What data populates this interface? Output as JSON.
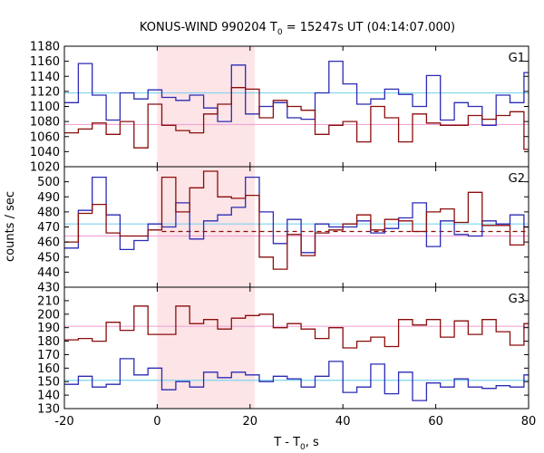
{
  "chart_data": {
    "type": "line",
    "title": "KONUS-WIND 990204 T",
    "title_sub": "0",
    "title_rest": " = 15247s UT (04:14:07.000)",
    "xlabel": "T - T",
    "xlabel_sub": "0",
    "xlabel_rest": ", s",
    "ylabel": "counts / sec",
    "xlim": [
      -20,
      80
    ],
    "xticks": [
      "-20",
      "0",
      "20",
      "40",
      "60",
      "80"
    ],
    "xtick_values": [
      -20,
      0,
      20,
      40,
      60,
      80
    ],
    "shaded_interval": [
      0,
      21
    ],
    "bin_edges": [
      -20,
      -17,
      -14,
      -11,
      -8,
      -5,
      -2,
      1,
      4,
      7,
      10,
      13,
      16,
      19,
      22,
      25,
      28,
      31,
      34,
      37,
      40,
      43,
      46,
      49,
      52,
      55,
      58,
      61,
      64,
      67,
      70,
      73,
      76,
      79,
      82
    ],
    "colors": {
      "blue": "#2b2bb5",
      "red": "#8b0d0d",
      "cyan_ref": "#7fd4f0",
      "pink_ref": "#f0a6d8",
      "shade": "#fde4e6"
    },
    "panels": [
      {
        "label": "G1",
        "ylim": [
          1020,
          1180
        ],
        "yticks": [
          1020,
          1040,
          1060,
          1080,
          1100,
          1120,
          1140,
          1160,
          1180
        ],
        "series": [
          {
            "color": "blue",
            "values": [
              1105,
              1157,
              1115,
              1082,
              1118,
              1110,
              1122,
              1112,
              1108,
              1115,
              1098,
              1080,
              1155,
              1090,
              1100,
              1105,
              1085,
              1083,
              1118,
              1160,
              1130,
              1103,
              1110,
              1123,
              1116,
              1100,
              1141,
              1082,
              1105,
              1100,
              1075,
              1115,
              1105,
              1145,
              1082
            ]
          },
          {
            "color": "red",
            "values": [
              1065,
              1070,
              1078,
              1063,
              1080,
              1045,
              1103,
              1075,
              1068,
              1065,
              1090,
              1103,
              1125,
              1123,
              1085,
              1108,
              1100,
              1095,
              1063,
              1075,
              1080,
              1053,
              1100,
              1085,
              1053,
              1090,
              1078,
              1075,
              1075,
              1088,
              1083,
              1088,
              1093,
              1043,
              1083
            ]
          }
        ],
        "refs": [
          {
            "color": "cyan_ref",
            "y": 1118
          },
          {
            "color": "pink_ref",
            "y": 1076
          }
        ]
      },
      {
        "label": "G2",
        "ylim": [
          430,
          510
        ],
        "yticks": [
          430,
          440,
          450,
          460,
          470,
          480,
          490,
          500
        ],
        "series": [
          {
            "color": "blue",
            "values": [
              456,
              481,
              503,
              478,
              455,
              461,
              472,
              470,
              486,
              462,
              474,
              478,
              483,
              503,
              480,
              459,
              475,
              453,
              472,
              470,
              470,
              474,
              466,
              469,
              476,
              486,
              457,
              474,
              465,
              464,
              474,
              472,
              478,
              470,
              456
            ]
          },
          {
            "color": "red",
            "values": [
              460,
              479,
              485,
              466,
              464,
              464,
              468,
              503,
              480,
              496,
              507,
              490,
              489,
              491,
              450,
              442,
              465,
              451,
              466,
              468,
              472,
              478,
              468,
              475,
              474,
              467,
              480,
              482,
              473,
              493,
              471,
              471,
              458,
              470,
              478
            ]
          }
        ],
        "refs": [
          {
            "color": "cyan_ref",
            "y": 472
          },
          {
            "color": "pink_ref",
            "y": 464
          }
        ],
        "dashed": {
          "color": "red",
          "y": 467,
          "x_from": 1,
          "x_to": 80
        }
      },
      {
        "label": "G3",
        "ylim": [
          130,
          220
        ],
        "yticks": [
          130,
          140,
          150,
          160,
          170,
          180,
          190,
          200,
          210
        ],
        "series": [
          {
            "color": "blue",
            "values": [
              148,
              154,
              146,
              148,
              167,
              155,
              160,
              144,
              150,
              146,
              157,
              153,
              157,
              155,
              150,
              154,
              152,
              146,
              154,
              165,
              142,
              146,
              163,
              141,
              157,
              136,
              149,
              146,
              152,
              146,
              145,
              147,
              146,
              155,
              148
            ]
          },
          {
            "color": "red",
            "values": [
              181,
              182,
              180,
              194,
              188,
              206,
              185,
              185,
              206,
              193,
              196,
              189,
              197,
              199,
              200,
              190,
              193,
              189,
              182,
              190,
              175,
              180,
              183,
              176,
              196,
              192,
              196,
              183,
              195,
              185,
              196,
              187,
              177,
              193,
              178
            ]
          }
        ],
        "refs": [
          {
            "color": "pink_ref",
            "y": 191
          },
          {
            "color": "cyan_ref",
            "y": 151
          }
        ]
      }
    ]
  }
}
